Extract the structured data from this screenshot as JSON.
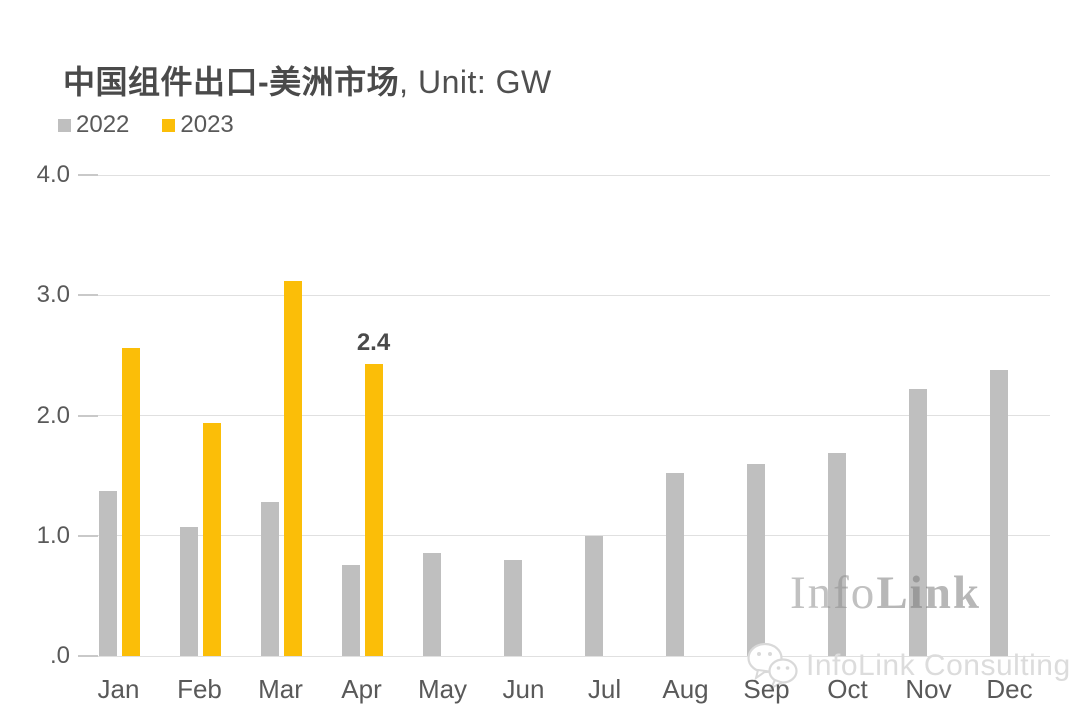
{
  "header": {
    "title_main": "中国组件出口-美洲市场",
    "title_suffix": ", Unit: GW"
  },
  "chart_data": {
    "type": "bar",
    "title": "中国组件出口-美洲市场, Unit: GW",
    "unit": "GW",
    "categories": [
      "Jan",
      "Feb",
      "Mar",
      "Apr",
      "May",
      "Jun",
      "Jul",
      "Aug",
      "Sep",
      "Oct",
      "Nov",
      "Dec"
    ],
    "series": [
      {
        "name": "2022",
        "color": "#BFBFBF",
        "values": [
          1.37,
          1.07,
          1.28,
          0.76,
          0.86,
          0.8,
          1.0,
          1.52,
          1.6,
          1.69,
          2.22,
          2.38
        ]
      },
      {
        "name": "2023",
        "color": "#FBBE08",
        "values": [
          2.56,
          1.94,
          3.12,
          2.43,
          null,
          null,
          null,
          null,
          null,
          null,
          null,
          null
        ]
      }
    ],
    "annotations": [
      {
        "series_index": 1,
        "category_index": 3,
        "text": "2.4"
      }
    ],
    "y_ticks": [
      "4.0",
      "3.0",
      "2.0",
      "1.0",
      ".0"
    ],
    "ylim": [
      0,
      4
    ],
    "grid": true,
    "legend_position": "top-left",
    "colors": {
      "grid": "#E0E0E0",
      "tick": "#C9C9C9",
      "axis_text": "#595959",
      "title_text": "#4A4A4A",
      "background": "#FFFFFF"
    }
  },
  "watermark": {
    "big_part1": "Info",
    "big_part2": "Link",
    "bottom_text": "InfoLink Consulting",
    "logo": "infolink-chat-bubbles-logo"
  }
}
